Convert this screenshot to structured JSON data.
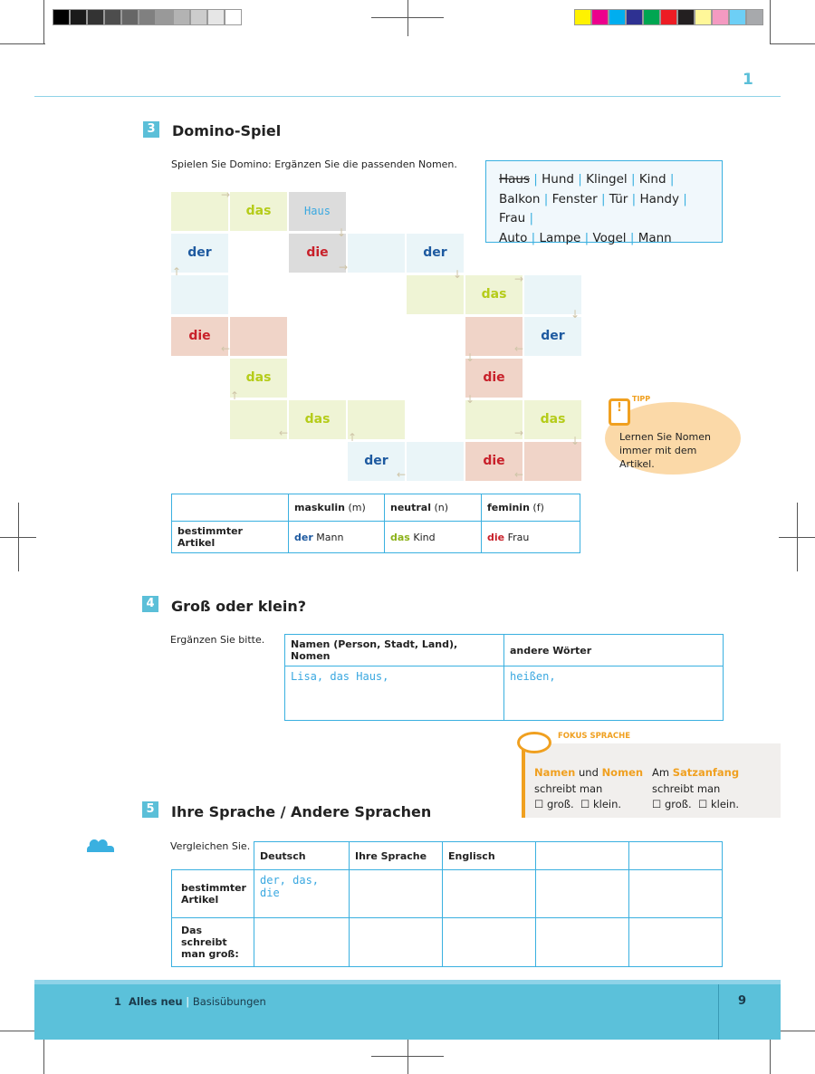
{
  "print_marks": {
    "gray_swatches": [
      "#000000",
      "#1a1a1a",
      "#333333",
      "#4d4d4d",
      "#666666",
      "#808080",
      "#999999",
      "#b3b3b3",
      "#cccccc",
      "#e6e6e6",
      "#ffffff"
    ],
    "color_swatches": [
      "#fff200",
      "#ec008c",
      "#00aeef",
      "#2e3192",
      "#00a651",
      "#ed1c24",
      "#231f20",
      "#fff799",
      "#f49ac1",
      "#6dcff6",
      "#a7a9ac"
    ]
  },
  "page_chapter_number": "1",
  "ex3": {
    "number": "3",
    "title": "Domino-Spiel",
    "instruction": "Spielen Sie Domino: Ergänzen Sie die passenden Nomen.",
    "word_lines": [
      [
        "Haus",
        "Hund",
        "Klingel",
        "Kind"
      ],
      [
        "Balkon",
        "Fenster",
        "Tür",
        "Handy",
        "Frau"
      ],
      [
        "Auto",
        "Lampe",
        "Vogel",
        "Mann"
      ]
    ],
    "domino": [
      {
        "r": 0,
        "c": 0,
        "color": "g",
        "text": ""
      },
      {
        "r": 0,
        "c": 1,
        "color": "g",
        "text": "das"
      },
      {
        "r": 0,
        "c": 2,
        "color": "y",
        "text": "Haus",
        "hand": true
      },
      {
        "r": 1,
        "c": 0,
        "color": "b",
        "text": "der"
      },
      {
        "r": 1,
        "c": 2,
        "color": "y",
        "text": "die"
      },
      {
        "r": 1,
        "c": 3,
        "color": "b",
        "text": ""
      },
      {
        "r": 1,
        "c": 4,
        "color": "b",
        "text": "der"
      },
      {
        "r": 2,
        "c": 0,
        "color": "b",
        "text": ""
      },
      {
        "r": 2,
        "c": 4,
        "color": "g",
        "text": ""
      },
      {
        "r": 2,
        "c": 5,
        "color": "g",
        "text": "das"
      },
      {
        "r": 2,
        "c": 6,
        "color": "b",
        "text": ""
      },
      {
        "r": 3,
        "c": 0,
        "color": "p",
        "text": "die"
      },
      {
        "r": 3,
        "c": 1,
        "color": "p",
        "text": ""
      },
      {
        "r": 3,
        "c": 5,
        "color": "p",
        "text": ""
      },
      {
        "r": 3,
        "c": 6,
        "color": "b",
        "text": "der"
      },
      {
        "r": 4,
        "c": 1,
        "color": "g",
        "text": "das"
      },
      {
        "r": 4,
        "c": 5,
        "color": "p",
        "text": "die"
      },
      {
        "r": 5,
        "c": 1,
        "color": "g",
        "text": ""
      },
      {
        "r": 5,
        "c": 2,
        "color": "g",
        "text": "das"
      },
      {
        "r": 5,
        "c": 3,
        "color": "g",
        "text": ""
      },
      {
        "r": 5,
        "c": 5,
        "color": "g",
        "text": ""
      },
      {
        "r": 5,
        "c": 6,
        "color": "g",
        "text": "das"
      },
      {
        "r": 6,
        "c": 3,
        "color": "b",
        "text": "der"
      },
      {
        "r": 6,
        "c": 4,
        "color": "b",
        "text": ""
      },
      {
        "r": 6,
        "c": 5,
        "color": "p",
        "text": "die"
      },
      {
        "r": 6,
        "c": 6,
        "color": "p",
        "text": ""
      }
    ],
    "tipp": {
      "label": "TIPP",
      "text": "Lernen Sie Nomen immer mit dem Artikel."
    },
    "table": {
      "headers": [
        "",
        "maskulin",
        "(m)",
        "neutral",
        "(n)",
        "feminin",
        "(f)"
      ],
      "row_label": "bestimmter Artikel",
      "cells": [
        [
          "der",
          "Mann"
        ],
        [
          "das",
          "Kind"
        ],
        [
          "die",
          "Frau"
        ]
      ]
    }
  },
  "ex4": {
    "number": "4",
    "title": "Groß oder klein?",
    "instruction": "Ergänzen Sie bitte.",
    "headers": [
      "Namen (Person, Stadt, Land), Nomen",
      "andere Wörter"
    ],
    "answers": [
      "Lisa, das Haus,",
      "heißen,"
    ]
  },
  "fokus": {
    "label": "FOKUS SPRACHE",
    "col1": {
      "w1": "Namen",
      "w2": " und ",
      "w3": "Nomen",
      "line2": "schreibt man"
    },
    "col2": {
      "w1": "Am ",
      "w2": "Satzanfang",
      "line2": "schreibt man"
    },
    "opt1": "groß.",
    "opt2": "klein."
  },
  "ex5": {
    "number": "5",
    "title": "Ihre Sprache / Andere Sprachen",
    "instruction": "Vergleichen Sie.",
    "headers": [
      "Deutsch",
      "Ihre Sprache",
      "Englisch",
      "",
      ""
    ],
    "rows": [
      {
        "label": "bestimmter Artikel",
        "first": "der, das, die"
      },
      {
        "label": "Das schreibt man groß:",
        "first": ""
      }
    ]
  },
  "footer": {
    "chapter": "1  Alles neu",
    "section": "Basisübungen",
    "page": "9"
  }
}
